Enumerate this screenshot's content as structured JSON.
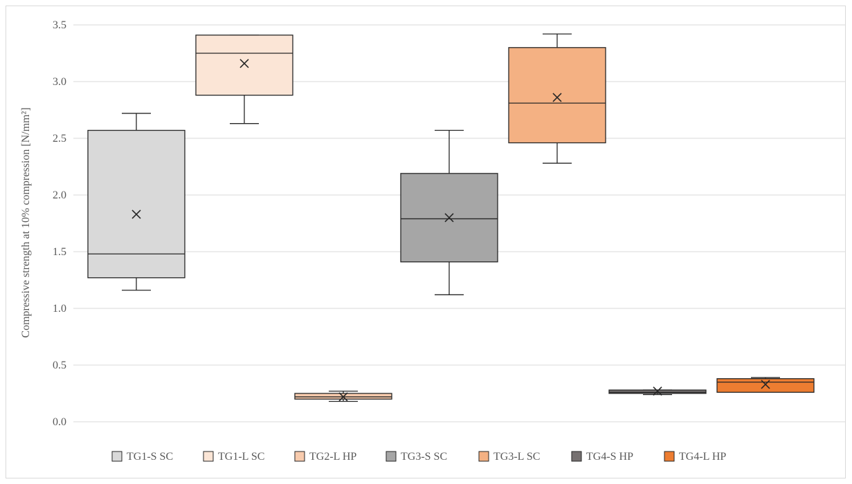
{
  "chart_data": {
    "type": "box",
    "title": "",
    "xlabel": "",
    "ylabel": "Compressive strength at 10% compression [N/mm²]",
    "ylim": [
      0.0,
      3.5
    ],
    "yticks": [
      "0.0",
      "0.5",
      "1.0",
      "1.5",
      "2.0",
      "2.5",
      "3.0",
      "3.5"
    ],
    "grid": true,
    "legend_position": "bottom",
    "series": [
      {
        "name": "TG1-S SC",
        "group": 1,
        "color": "#d9d9d9",
        "whisker_low": 1.16,
        "q1": 1.27,
        "median": 1.48,
        "q3": 2.57,
        "whisker_high": 2.72,
        "mean": 1.83
      },
      {
        "name": "TG1-L SC",
        "group": 1,
        "color": "#fbe5d6",
        "whisker_low": 2.63,
        "q1": 2.88,
        "median": 3.25,
        "q3": 3.41,
        "whisker_high": 3.41,
        "mean": 3.16
      },
      {
        "name": "TG2-L HP",
        "group": 2,
        "color": "#f8cbad",
        "whisker_low": 0.18,
        "q1": 0.2,
        "median": 0.22,
        "q3": 0.25,
        "whisker_high": 0.27,
        "mean": 0.22
      },
      {
        "name": "TG3-S SC",
        "group": 3,
        "color": "#a6a6a6",
        "whisker_low": 1.12,
        "q1": 1.41,
        "median": 1.79,
        "q3": 2.19,
        "whisker_high": 2.57,
        "mean": 1.8
      },
      {
        "name": "TG3-L SC",
        "group": 3,
        "color": "#f4b183",
        "whisker_low": 2.28,
        "q1": 2.46,
        "median": 2.81,
        "q3": 3.3,
        "whisker_high": 3.42,
        "mean": 2.86
      },
      {
        "name": "TG4-S HP",
        "group": 4,
        "color": "#767171",
        "whisker_low": 0.24,
        "q1": 0.25,
        "median": 0.26,
        "q3": 0.28,
        "whisker_high": 0.28,
        "mean": 0.27
      },
      {
        "name": "TG4-L HP",
        "group": 4,
        "color": "#ed7d31",
        "whisker_low": 0.26,
        "q1": 0.26,
        "median": 0.35,
        "q3": 0.38,
        "whisker_high": 0.39,
        "mean": 0.33
      }
    ]
  }
}
